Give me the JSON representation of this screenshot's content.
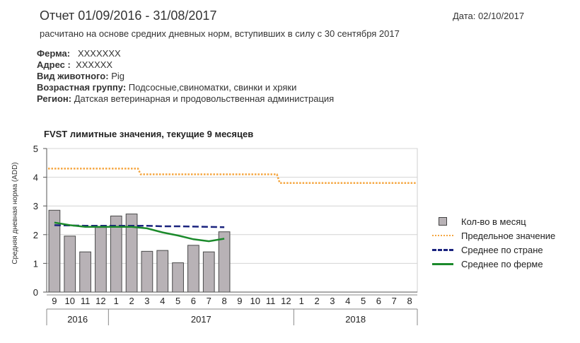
{
  "report": {
    "title": "Отчет 01/09/2016 - 31/08/2017",
    "date": "Дата: 02/10/2017",
    "subtitle": "расчитано на основе средних дневных норм, вступивших в силу с 30 сентября 2017",
    "farm_label": "Ферма",
    "farm_value": "XXXXXXX",
    "address_label": "Адрес",
    "address_value": "XXXXXX",
    "animal_label": "Вид животного",
    "animal_value": "Pig",
    "age_label": "Возрастная группу",
    "age_value": "Подсосные,свиноматки, свинки и хряки",
    "region_label": "Регион",
    "region_value": "Датская ветеринарная и продовольственная администрация"
  },
  "legend": {
    "bars": "Кол-во в месяц",
    "limit": "Предельное значение",
    "country": "Среднее по стране",
    "farm": "Среднее по ферме"
  },
  "chart_data": {
    "type": "bar",
    "title": "FVST лимитные значения, текущие 9 месяцев",
    "ylabel": "Средняя дневная норма (ADD)",
    "xlabel": "",
    "ylim": [
      0,
      5
    ],
    "yticks": [
      0,
      1,
      2,
      3,
      4,
      5
    ],
    "grid": true,
    "legend_position": "right",
    "categories": [
      "9",
      "10",
      "11",
      "12",
      "1",
      "2",
      "3",
      "4",
      "5",
      "6",
      "7",
      "8",
      "9",
      "10",
      "11",
      "12",
      "1",
      "2",
      "3",
      "4",
      "5",
      "6",
      "7",
      "8"
    ],
    "year_labels": [
      {
        "label": "2016",
        "from": 0,
        "to": 3
      },
      {
        "label": "2017",
        "from": 4,
        "to": 15
      },
      {
        "label": "2018",
        "from": 16,
        "to": 23
      }
    ],
    "series": [
      {
        "name": "Кол-во в месяц",
        "kind": "bar",
        "color": "#b8b2b6",
        "values": [
          2.85,
          1.95,
          1.4,
          2.25,
          2.65,
          2.72,
          1.42,
          1.45,
          1.02,
          1.63,
          1.4,
          2.1,
          null,
          null,
          null,
          null,
          null,
          null,
          null,
          null,
          null,
          null,
          null,
          null
        ]
      },
      {
        "name": "Предельное значение",
        "kind": "dotted",
        "color": "#f5a640",
        "values": [
          4.3,
          4.3,
          4.3,
          4.3,
          4.3,
          4.3,
          4.1,
          4.1,
          4.1,
          4.1,
          4.1,
          4.1,
          4.1,
          4.1,
          4.1,
          3.8,
          3.8,
          3.8,
          3.8,
          3.8,
          3.8,
          3.8,
          3.8,
          3.8
        ]
      },
      {
        "name": "Среднее по стране",
        "kind": "dashed",
        "color": "#1a237e",
        "values": [
          2.33,
          2.32,
          2.31,
          2.31,
          2.31,
          2.31,
          2.31,
          2.29,
          2.29,
          2.28,
          2.27,
          2.26,
          null,
          null,
          null,
          null,
          null,
          null,
          null,
          null,
          null,
          null,
          null,
          null
        ]
      },
      {
        "name": "Среднее по ферме",
        "kind": "solid",
        "color": "#1b8a2b",
        "values": [
          2.42,
          2.33,
          2.27,
          2.27,
          2.27,
          2.27,
          2.22,
          2.08,
          1.97,
          1.84,
          1.77,
          1.86,
          null,
          null,
          null,
          null,
          null,
          null,
          null,
          null,
          null,
          null,
          null,
          null
        ]
      }
    ]
  }
}
